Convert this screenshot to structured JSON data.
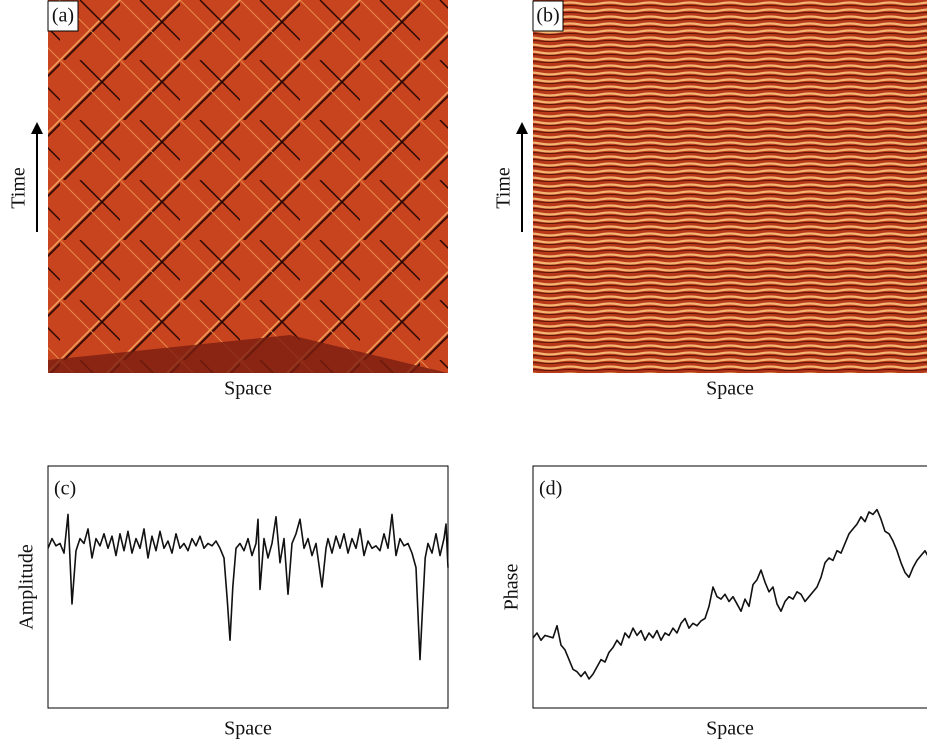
{
  "images": [
    {
      "label": "(a)",
      "xlabel": "Space",
      "ylabel": "Time"
    },
    {
      "label": "(b)",
      "xlabel": "Space",
      "ylabel": "Time"
    }
  ],
  "chart_data": [
    {
      "type": "line",
      "label": "(c)",
      "xlabel": "Space",
      "ylabel": "Amplitude",
      "color": "#111111",
      "xlim": [
        0,
        100
      ],
      "ylim": [
        0,
        100
      ],
      "x": [
        0,
        1,
        2,
        3,
        4,
        5,
        6,
        7,
        8,
        9,
        10,
        11,
        12,
        13,
        14,
        15,
        16,
        17,
        18,
        19,
        20,
        21,
        22,
        23,
        24,
        25,
        26,
        27,
        28,
        29,
        30,
        31,
        32,
        33,
        34,
        35,
        36,
        37,
        38,
        39,
        40,
        41,
        42,
        43,
        44,
        44.8,
        45.5,
        46.2,
        47,
        48,
        49,
        50,
        51,
        52,
        52.5,
        53,
        54,
        55,
        56,
        57,
        58,
        59,
        60,
        61,
        62,
        63,
        64,
        65,
        66,
        67,
        68.5,
        69.5,
        70,
        71,
        72,
        73,
        74,
        75,
        76,
        77,
        78,
        79,
        80,
        81,
        82,
        83,
        84,
        85,
        86,
        87,
        88,
        89,
        90,
        91,
        92,
        92.6,
        93,
        93.6,
        94.3,
        95,
        96,
        97,
        98,
        99,
        99.5,
        100
      ],
      "values": [
        66,
        70,
        67,
        68,
        64,
        80,
        43,
        65,
        70,
        68,
        74,
        62,
        70,
        67,
        72,
        66,
        71,
        63,
        72,
        65,
        73,
        64,
        70,
        66,
        74,
        62,
        71,
        65,
        73,
        66,
        69,
        64,
        72,
        66,
        68,
        65,
        70,
        67,
        71,
        66,
        68,
        67,
        69,
        66,
        62,
        45,
        28,
        50,
        66,
        68,
        65,
        70,
        63,
        68,
        78,
        49,
        70,
        62,
        68,
        79,
        60,
        70,
        47,
        68,
        72,
        78,
        66,
        70,
        63,
        68,
        50,
        66,
        70,
        64,
        71,
        66,
        72,
        64,
        70,
        66,
        74,
        63,
        69,
        66,
        67,
        65,
        72,
        66,
        80,
        63,
        70,
        67,
        68,
        64,
        58,
        35,
        20,
        40,
        62,
        68,
        64,
        72,
        63,
        70,
        76,
        58
      ]
    },
    {
      "type": "line",
      "label": "(d)",
      "xlabel": "Space",
      "ylabel": "Phase",
      "color": "#111111",
      "xlim": [
        0,
        100
      ],
      "ylim": [
        0,
        100
      ],
      "x": [
        0,
        1,
        2,
        3,
        5,
        6,
        7,
        8,
        9,
        10,
        11,
        12,
        13,
        14,
        15,
        16,
        17,
        18,
        19,
        20,
        21,
        22,
        23,
        24,
        25,
        26,
        27,
        28,
        29,
        30,
        31,
        32,
        33,
        34,
        35,
        36,
        37,
        38,
        39,
        40,
        41,
        42,
        43,
        44,
        45,
        46,
        47,
        48,
        49,
        50,
        51,
        52,
        53,
        54,
        55,
        56,
        57,
        58,
        59,
        60,
        61,
        62,
        63,
        64,
        65,
        66,
        67,
        68,
        69,
        70,
        71,
        72,
        73,
        74,
        75,
        76,
        77,
        78,
        79,
        80,
        81,
        82,
        83,
        84,
        85,
        86,
        87,
        88,
        89,
        90,
        91,
        92,
        93,
        94,
        95,
        96,
        97,
        98,
        99,
        100
      ],
      "values": [
        29,
        31,
        28,
        30,
        29,
        34,
        26,
        24,
        20,
        16,
        15,
        13,
        15,
        12,
        14,
        17,
        20,
        19,
        23,
        25,
        28,
        26,
        31,
        29,
        33,
        30,
        32,
        28,
        31,
        29,
        32,
        28,
        31,
        30,
        33,
        31,
        35,
        37,
        33,
        35,
        34,
        36,
        37,
        42,
        50,
        46,
        45,
        47,
        44,
        46,
        43,
        40,
        45,
        42,
        51,
        53,
        57,
        52,
        48,
        50,
        43,
        40,
        44,
        46,
        45,
        48,
        47,
        44,
        46,
        48,
        50,
        54,
        60,
        62,
        61,
        65,
        64,
        68,
        72,
        74,
        76,
        79,
        77,
        81,
        80,
        82,
        78,
        73,
        72,
        69,
        65,
        60,
        56,
        54,
        58,
        61,
        63,
        65,
        62,
        60
      ]
    }
  ]
}
